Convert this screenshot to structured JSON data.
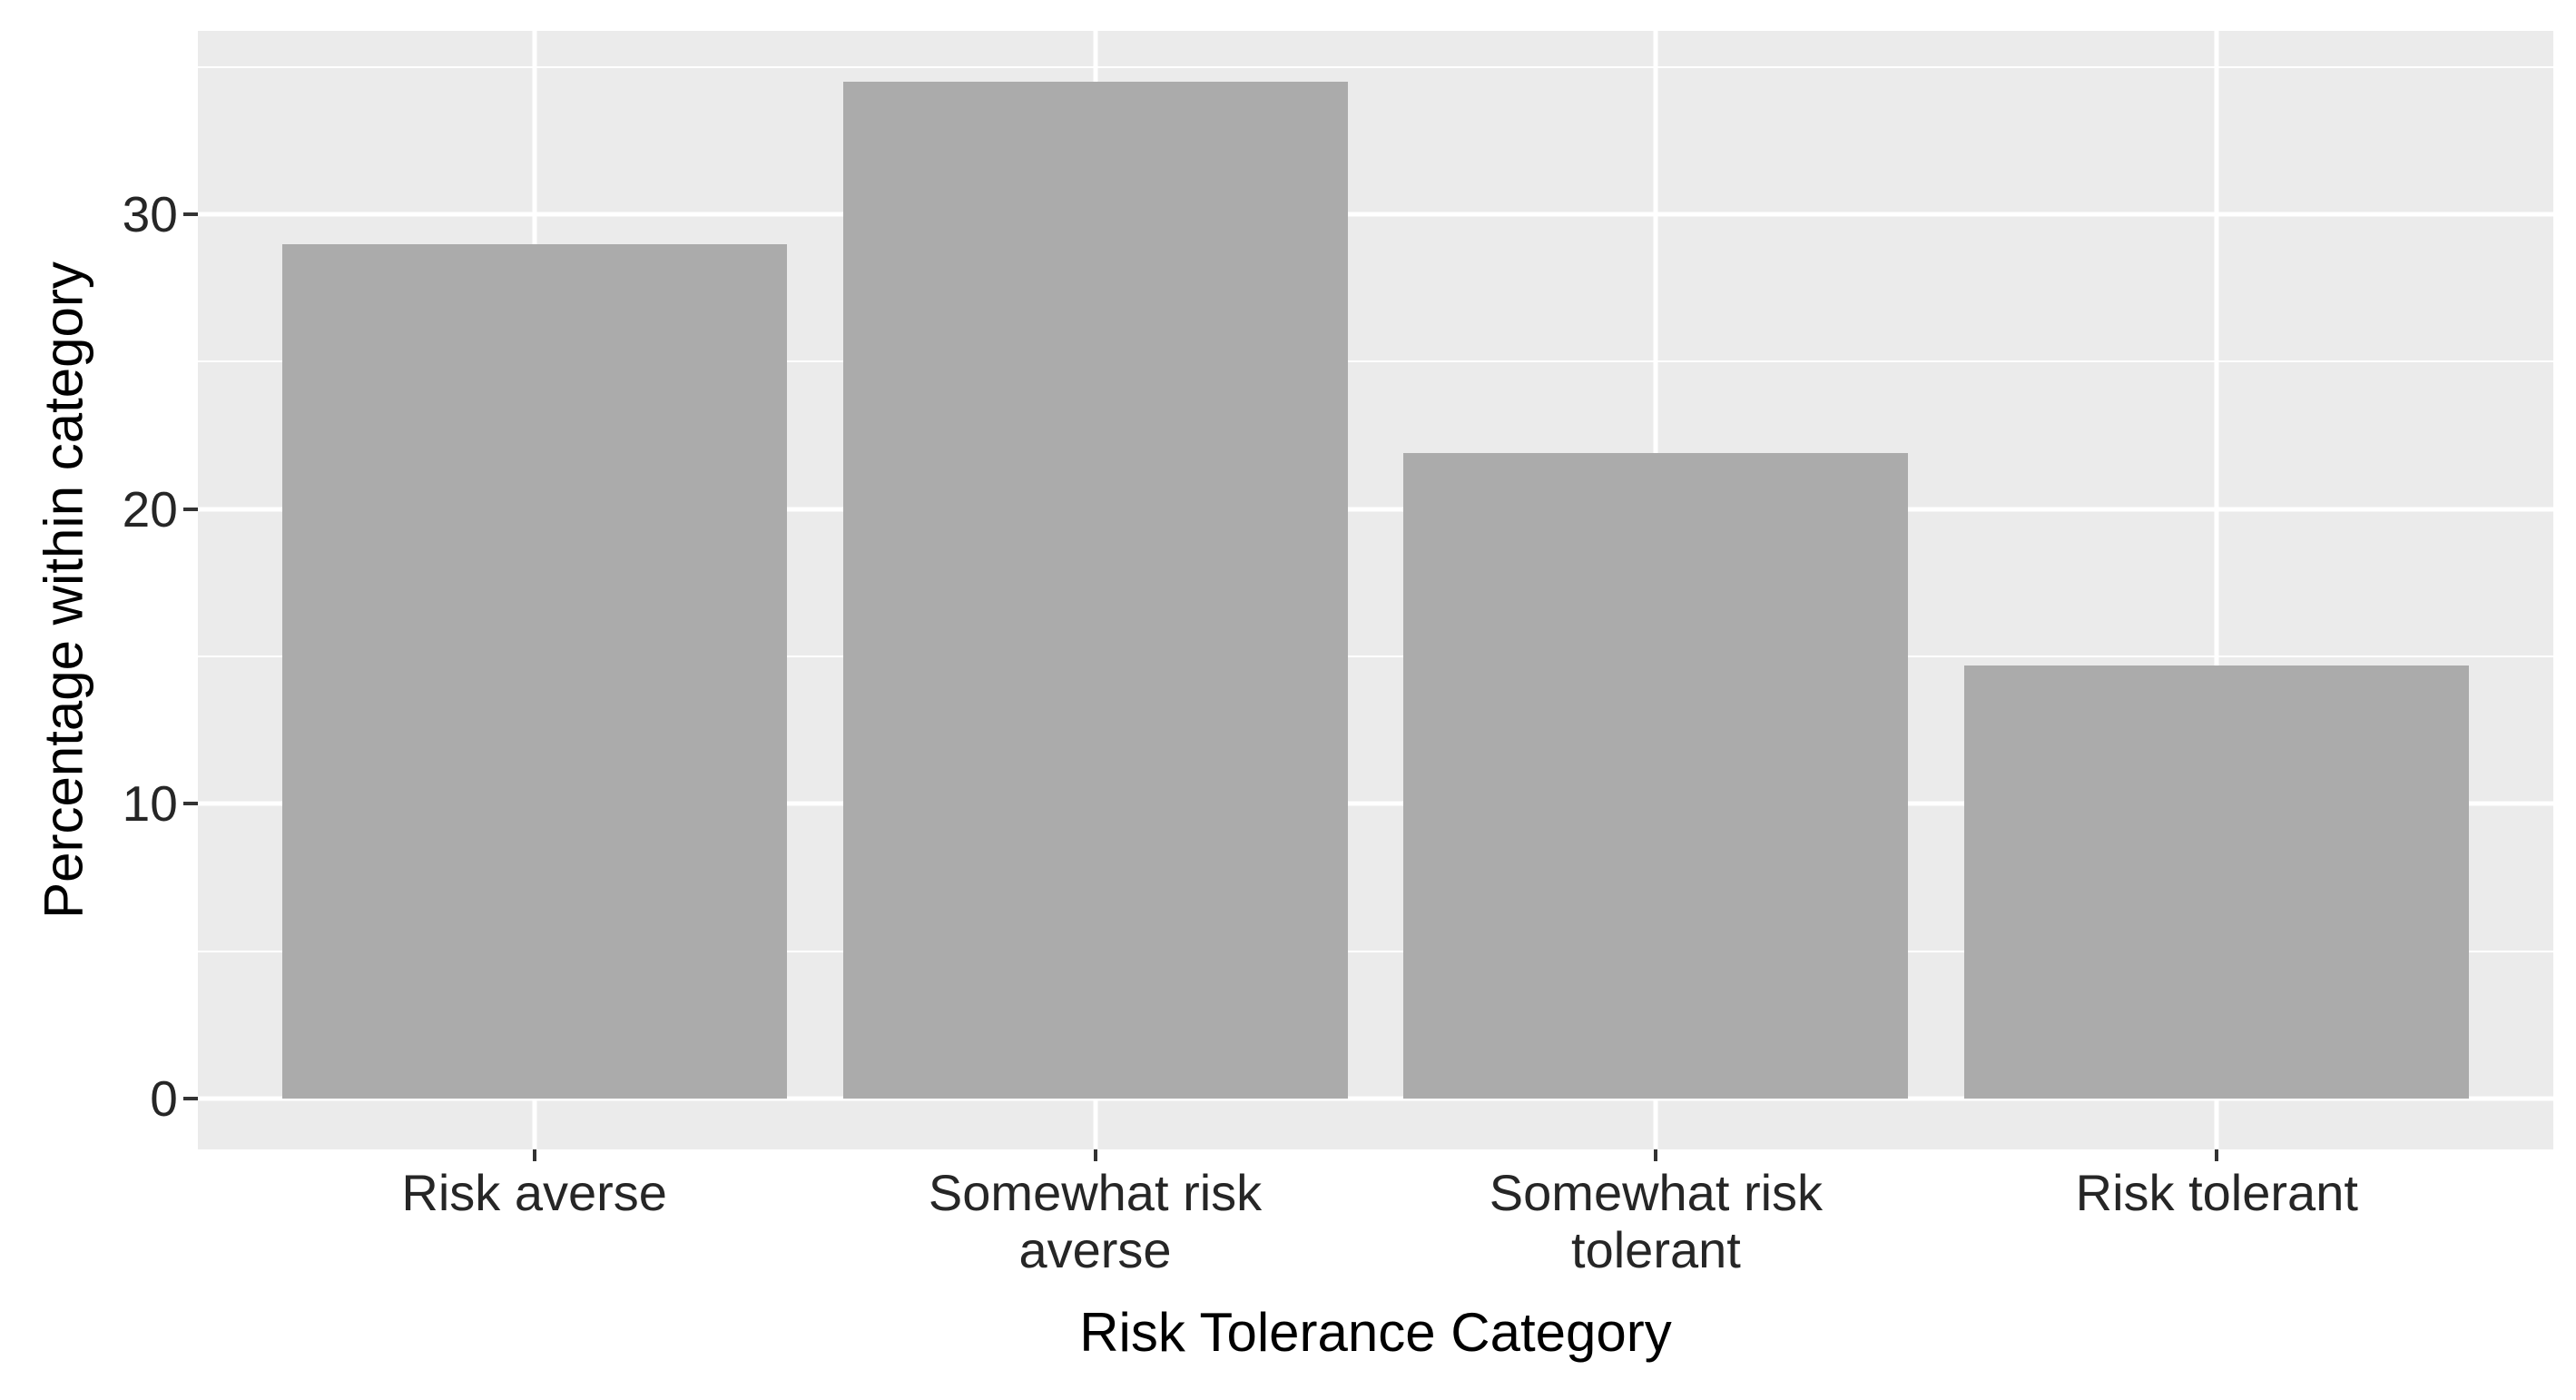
{
  "chart_data": {
    "type": "bar",
    "title": "",
    "xlabel": "Risk Tolerance Category",
    "ylabel": "Percentage within category",
    "categories": [
      "Risk averse",
      "Somewhat risk\naverse",
      "Somewhat risk\ntolerant",
      "Risk tolerant"
    ],
    "values": [
      29,
      34.5,
      21.9,
      14.7
    ],
    "yticks": [
      0,
      10,
      20,
      30
    ],
    "yticks_minor": [
      5,
      15,
      25,
      35
    ],
    "ylim": [
      0,
      34.5
    ],
    "legend": "none",
    "grid": "on",
    "grid_style": "white major horizontal lines at yticks, thinner white minor lines between, white vertical lines at category centers"
  },
  "colors": {
    "page_bg": "#FFFFFF",
    "panel_bg": "#EBEBEB",
    "bar_fill": "#ABABAB",
    "gridline": "#FFFFFF",
    "tick_mark": "#333333",
    "tick_label": "#262626",
    "axis_title": "#000000"
  }
}
